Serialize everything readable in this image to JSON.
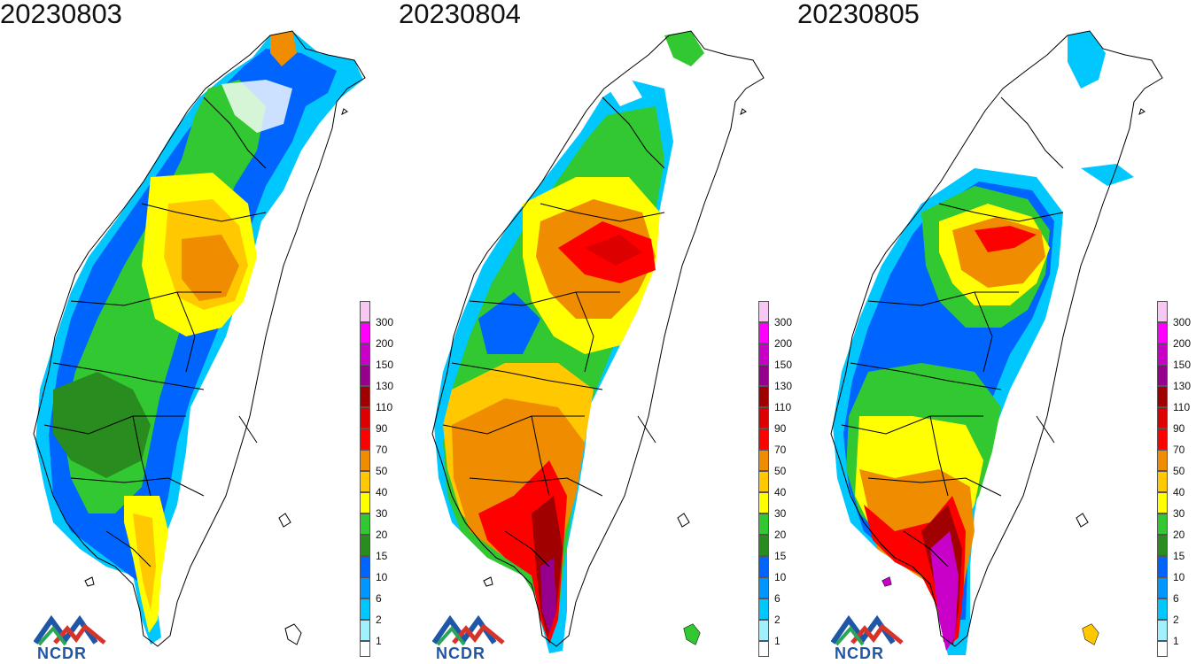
{
  "panels": [
    {
      "date": "20230803",
      "variant": "day1"
    },
    {
      "date": "20230804",
      "variant": "day2"
    },
    {
      "date": "20230805",
      "variant": "day3"
    }
  ],
  "legend": {
    "levels": [
      {
        "label": "300",
        "color": "#f7c8f2"
      },
      {
        "label": "200",
        "color": "#ff00ff"
      },
      {
        "label": "150",
        "color": "#c800c8"
      },
      {
        "label": "130",
        "color": "#96008c"
      },
      {
        "label": "110",
        "color": "#a00000"
      },
      {
        "label": "90",
        "color": "#dc0000"
      },
      {
        "label": "70",
        "color": "#ff0000"
      },
      {
        "label": "50",
        "color": "#f08c00"
      },
      {
        "label": "40",
        "color": "#ffc800"
      },
      {
        "label": "30",
        "color": "#ffff00"
      },
      {
        "label": "20",
        "color": "#32c832"
      },
      {
        "label": "15",
        "color": "#288c1e"
      },
      {
        "label": "10",
        "color": "#0064ff"
      },
      {
        "label": "6",
        "color": "#0096ff"
      },
      {
        "label": "2",
        "color": "#00c8ff"
      },
      {
        "label": "1",
        "color": "#a0f0ff"
      },
      {
        "label": "",
        "color": "#ffffff"
      }
    ]
  },
  "logo": {
    "text": "NCDR"
  }
}
